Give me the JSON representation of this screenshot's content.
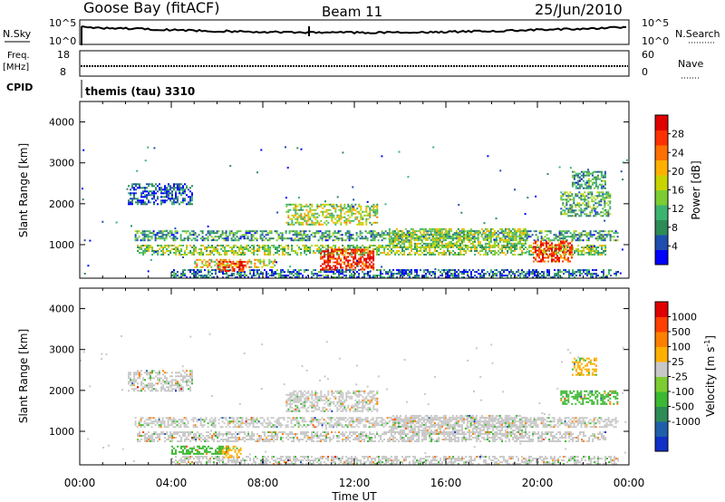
{
  "header": {
    "station": "Goose Bay (fitACF)",
    "beam": "Beam 11",
    "date": "25/Jun/2010"
  },
  "top_panels": {
    "nsky_label": "N.Sky",
    "nsky_ticks": [
      "10^5",
      "10^0"
    ],
    "nsearch_label": "N.Search",
    "nsearch_ticks": [
      "10^5",
      "10^0"
    ],
    "freq_label_line1": "Freq.",
    "freq_label_line2": "[MHz]",
    "freq_ticks": [
      "18",
      "8"
    ],
    "nave_label": "Nave",
    "nave_ticks": [
      "60",
      "0"
    ],
    "cpid_label": "CPID",
    "cpid_text": "themis (tau) 3310"
  },
  "chart_data": [
    {
      "type": "heatmap",
      "name": "power-panel",
      "ylabel": "Slant Range [km]",
      "yticks": [
        "1000",
        "2000",
        "3000",
        "4000"
      ],
      "ylim": [
        180,
        4500
      ],
      "xlim": [
        0,
        24
      ],
      "colorbar": {
        "label": "Power [dB]",
        "ticks": [
          "4",
          "8",
          "12",
          "16",
          "20",
          "24",
          "28"
        ],
        "colors": [
          "#0000ff",
          "#1f4fae",
          "#2e8b57",
          "#3cb371",
          "#7ccd32",
          "#c8d400",
          "#ffb000",
          "#ff7000",
          "#ff3000",
          "#e00000"
        ]
      },
      "regions": [
        {
          "t": [
            2.1,
            4.9
          ],
          "r": [
            2000,
            2500
          ],
          "level": 0.15
        },
        {
          "t": [
            2.4,
            23.5
          ],
          "r": [
            1100,
            1350
          ],
          "level": 0.3
        },
        {
          "t": [
            2.5,
            23.0
          ],
          "r": [
            750,
            1000
          ],
          "level": 0.45
        },
        {
          "t": [
            4.0,
            23.5
          ],
          "r": [
            200,
            400
          ],
          "level": 0.2
        },
        {
          "t": [
            5.0,
            8.5
          ],
          "r": [
            450,
            650
          ],
          "level": 0.6
        },
        {
          "t": [
            6.0,
            7.2
          ],
          "r": [
            350,
            600
          ],
          "level": 0.95
        },
        {
          "t": [
            10.5,
            12.8
          ],
          "r": [
            400,
            900
          ],
          "level": 0.9
        },
        {
          "t": [
            9.0,
            13.0
          ],
          "r": [
            1500,
            2000
          ],
          "level": 0.5
        },
        {
          "t": [
            13.5,
            19.5
          ],
          "r": [
            950,
            1400
          ],
          "level": 0.45
        },
        {
          "t": [
            19.8,
            21.5
          ],
          "r": [
            600,
            1100
          ],
          "level": 0.85
        },
        {
          "t": [
            21.0,
            23.2
          ],
          "r": [
            1700,
            2300
          ],
          "level": 0.35
        },
        {
          "t": [
            21.5,
            23.0
          ],
          "r": [
            2400,
            2800
          ],
          "level": 0.3
        }
      ]
    },
    {
      "type": "heatmap",
      "name": "velocity-panel",
      "ylabel": "Slant Range [km]",
      "yticks": [
        "1000",
        "2000",
        "3000",
        "4000"
      ],
      "ylim": [
        180,
        4500
      ],
      "xlim": [
        0,
        24
      ],
      "xticks": [
        "00:00",
        "04:00",
        "08:00",
        "12:00",
        "16:00",
        "20:00",
        "00:00"
      ],
      "xlabel": "Time UT",
      "colorbar": {
        "label": "Velocity [m s",
        "label_sup": "-1",
        "label_end": "]",
        "ticks": [
          "1000",
          "500",
          "100",
          "25",
          "-25",
          "-100",
          "-500",
          "-1000"
        ],
        "colors": [
          "#1030c8",
          "#1f5faa",
          "#2e8b57",
          "#3cb832",
          "#7ccd32",
          "#c8c8c8",
          "#ffb000",
          "#ff8000",
          "#ff4000",
          "#e00000"
        ]
      },
      "regions": [
        {
          "t": [
            2.1,
            4.9
          ],
          "r": [
            2000,
            2500
          ],
          "level": 0.5
        },
        {
          "t": [
            2.4,
            23.5
          ],
          "r": [
            1100,
            1350
          ],
          "level": 0.5
        },
        {
          "t": [
            2.5,
            23.0
          ],
          "r": [
            750,
            1000
          ],
          "level": 0.5
        },
        {
          "t": [
            4.0,
            23.5
          ],
          "r": [
            200,
            400
          ],
          "level": 0.5
        },
        {
          "t": [
            4.0,
            6.5
          ],
          "r": [
            450,
            650
          ],
          "level": 0.35
        },
        {
          "t": [
            6.2,
            7.0
          ],
          "r": [
            350,
            650
          ],
          "level": 0.65
        },
        {
          "t": [
            9.0,
            13.0
          ],
          "r": [
            1500,
            2000
          ],
          "level": 0.5
        },
        {
          "t": [
            13.5,
            19.5
          ],
          "r": [
            950,
            1400
          ],
          "level": 0.5
        },
        {
          "t": [
            21.0,
            23.5
          ],
          "r": [
            1650,
            2000
          ],
          "level": 0.35
        },
        {
          "t": [
            21.5,
            22.6
          ],
          "r": [
            2400,
            2800
          ],
          "level": 0.65
        }
      ]
    }
  ]
}
